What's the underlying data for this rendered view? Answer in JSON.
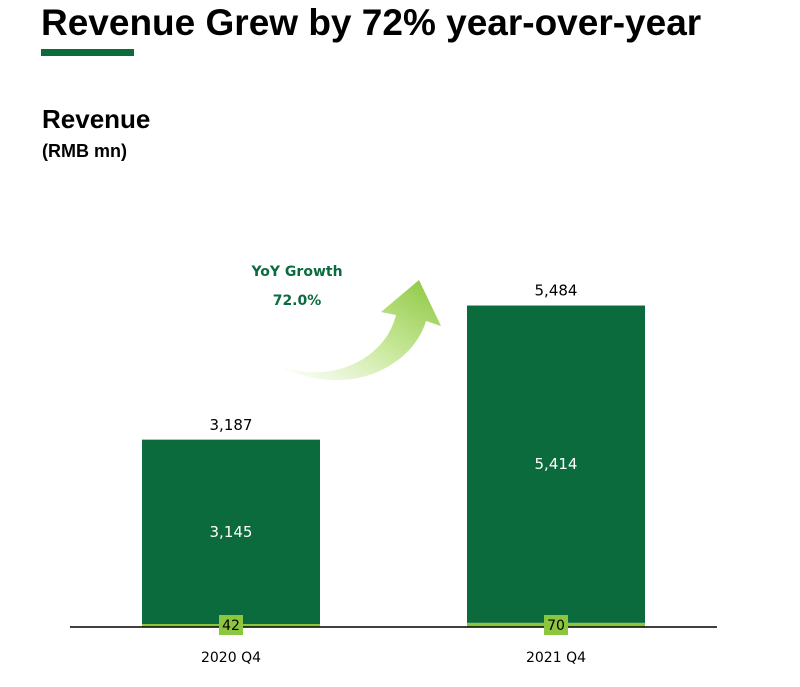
{
  "header": {
    "headline": "Revenue Grew by 72% year-over-year"
  },
  "colors": {
    "brand_green": "#0b6b3d",
    "accent_green": "#8cc63f"
  },
  "chart_data": {
    "type": "bar",
    "stacked": true,
    "title": "Revenue",
    "subtitle": "(RMB mn)",
    "categories": [
      "2020 Q4",
      "2021 Q4"
    ],
    "series": [
      {
        "values": [
          42,
          70
        ],
        "color": "#8cc63f"
      },
      {
        "values": [
          3145,
          5414
        ],
        "color": "#0b6b3d"
      }
    ],
    "totals": [
      3187,
      5484
    ],
    "data_labels": {
      "totals": [
        "3,187",
        "5,484"
      ],
      "upper": [
        "3,145",
        "5,414"
      ],
      "lower": [
        "42",
        "70"
      ]
    },
    "annotation": {
      "title": "YoY Growth",
      "value": "72.0%",
      "icon": "curved-up-arrow-icon"
    },
    "ylim": [
      0,
      5800
    ],
    "grid": false,
    "legend": "none"
  }
}
